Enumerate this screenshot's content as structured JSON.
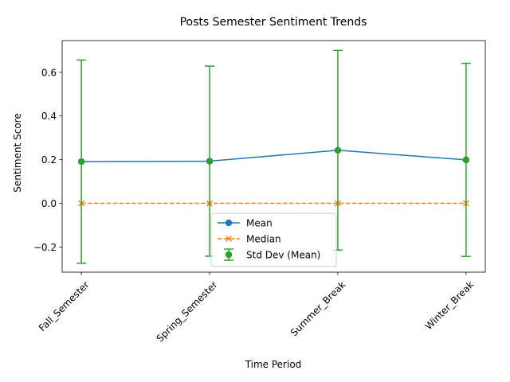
{
  "chart_data": {
    "type": "line",
    "title": "Posts Semester Sentiment Trends",
    "xlabel": "Time Period",
    "ylabel": "Sentiment Score",
    "categories": [
      "Fall_Semester",
      "Spring_Semester",
      "Summer_Break",
      "Winter_Break"
    ],
    "ylim": [
      -0.315,
      0.745
    ],
    "yticks": [
      -0.2,
      0.0,
      0.2,
      0.4,
      0.6
    ],
    "ytick_labels": [
      "−0.2",
      "0.0",
      "0.2",
      "0.4",
      "0.6"
    ],
    "grid": false,
    "legend_position": "lower center",
    "series": [
      {
        "name": "Mean",
        "values": [
          0.191,
          0.193,
          0.243,
          0.199
        ],
        "color": "#1f77b4",
        "marker": "circle",
        "linestyle": "solid"
      },
      {
        "name": "Median",
        "values": [
          0.0,
          0.0,
          0.0,
          0.0
        ],
        "color": "#ff7f0e",
        "marker": "x",
        "linestyle": "dashed"
      },
      {
        "name": "Std Dev (Mean)",
        "values": [
          0.191,
          0.193,
          0.243,
          0.199
        ],
        "errors": [
          0.465,
          0.435,
          0.457,
          0.442
        ],
        "color": "#2ca02c",
        "marker": "circle",
        "linestyle": "none"
      }
    ]
  }
}
